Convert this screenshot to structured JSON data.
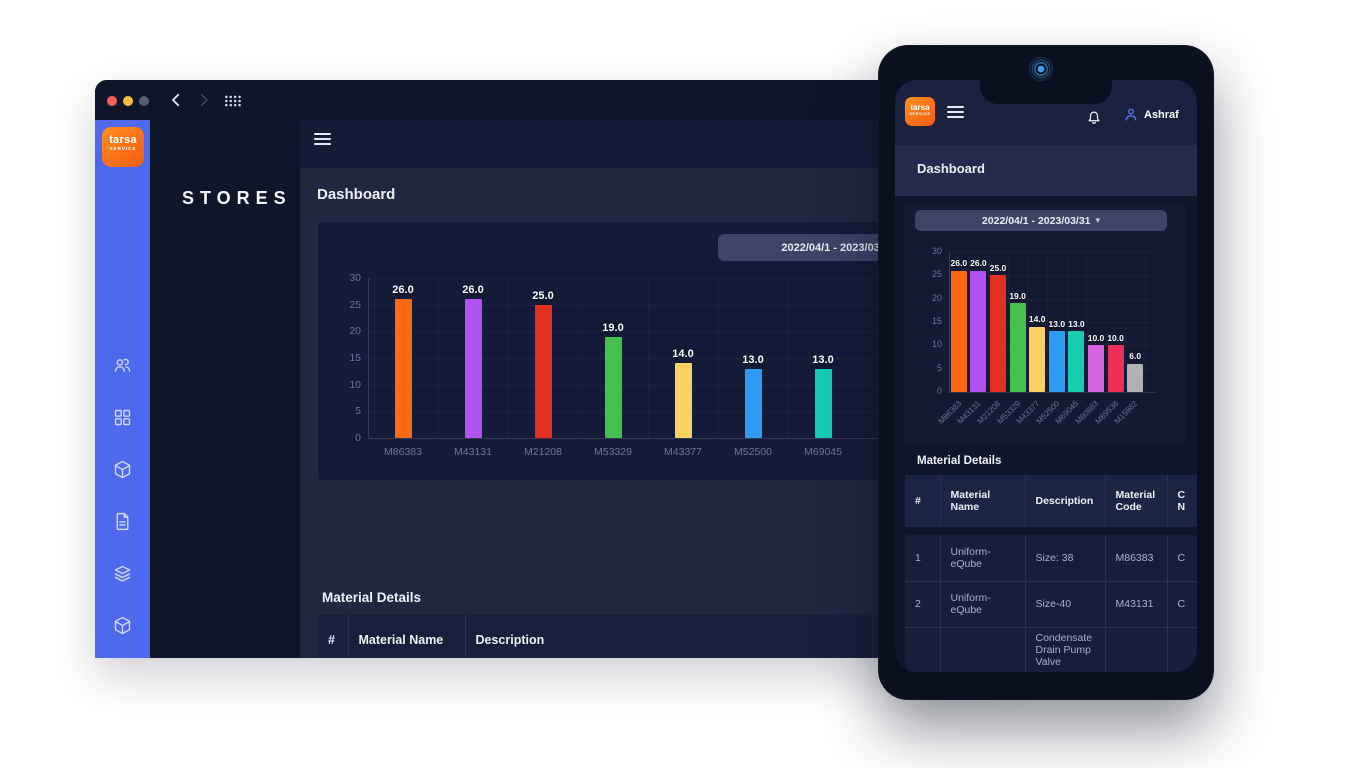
{
  "icons": {
    "caret_down": "▾"
  },
  "colors": {
    "accent_orange": "#f97316",
    "rail_blue": "#4e68ee",
    "pill_bg": "#3d4466"
  },
  "desktop": {
    "app_title": "STORES",
    "page_title": "Dashboard",
    "date_range_label": "2022/04/1 - 2023/03/31",
    "logo": {
      "line1": "tarsa",
      "line2": "SERVICE"
    },
    "sidebar_icons": [
      "users-icon",
      "dashboard-grid-icon",
      "package-icon",
      "document-icon",
      "layers-icon",
      "package-icon",
      "document-icon",
      "layers-icon",
      "chat-icon"
    ],
    "table": {
      "title": "Material Details",
      "columns": [
        "#",
        "Material Name",
        "Description"
      ],
      "rows": [
        [
          "1",
          "Uniform-eQube",
          "Size: 38"
        ],
        [
          "2",
          "Uniform-eQube",
          "Size-40"
        ]
      ]
    }
  },
  "mobile": {
    "user_name": "Ashraf",
    "page_title": "Dashboard",
    "date_range_label": "2022/04/1 - 2023/03/31",
    "logo": {
      "line1": "tarsa",
      "line2": "SERVICE"
    },
    "table": {
      "title": "Material Details",
      "columns": [
        "#",
        "Material Name",
        "Description",
        "Material Code",
        "C\nN"
      ],
      "rows": [
        [
          "1",
          "Uniform-eQube",
          "Size: 38",
          "M86383",
          "C"
        ],
        [
          "2",
          "Uniform-eQube",
          "Size-40",
          "M43131",
          "C"
        ],
        [
          "",
          "",
          "Condensate Drain Pump Valve",
          "",
          ""
        ]
      ]
    }
  },
  "chart_data": [
    {
      "type": "bar",
      "title": "",
      "categories": [
        "M86383",
        "M43131",
        "M21208",
        "M53329",
        "M43377",
        "M52500",
        "M69045"
      ],
      "values": [
        26,
        26,
        25,
        19,
        14,
        13,
        13
      ],
      "value_labels": [
        "26.0",
        "26.0",
        "25.0",
        "19.0",
        "14.0",
        "13.0",
        "13.0"
      ],
      "colors": [
        "#fb6a10",
        "#b151f2",
        "#e6301f",
        "#47c14e",
        "#fad061",
        "#2d9bf0",
        "#16cdb3"
      ],
      "xlabel": "",
      "ylabel": "",
      "ylim": [
        0,
        30
      ],
      "ytick_step": 5,
      "grid": true,
      "legend": false
    },
    {
      "type": "bar",
      "title": "",
      "categories": [
        "M86383",
        "M43131",
        "M21208",
        "M53329",
        "M43377",
        "M52500",
        "M69045",
        "M80883",
        "M89536",
        "M15982"
      ],
      "values": [
        26,
        26,
        25,
        19,
        14,
        13,
        13,
        10,
        10,
        6
      ],
      "value_labels": [
        "26.0",
        "26.0",
        "25.0",
        "19.0",
        "14.0",
        "13.0",
        "13.0",
        "10.0",
        "10.0",
        "6.0"
      ],
      "colors": [
        "#fb6a10",
        "#b151f2",
        "#e6301f",
        "#47c14e",
        "#fad061",
        "#2d9bf0",
        "#16cdb3",
        "#d964e0",
        "#ec3059",
        "#b2b2b6"
      ],
      "xlabel": "",
      "ylabel": "",
      "ylim": [
        0,
        30
      ],
      "ytick_step": 5,
      "grid": true,
      "legend": false
    }
  ]
}
